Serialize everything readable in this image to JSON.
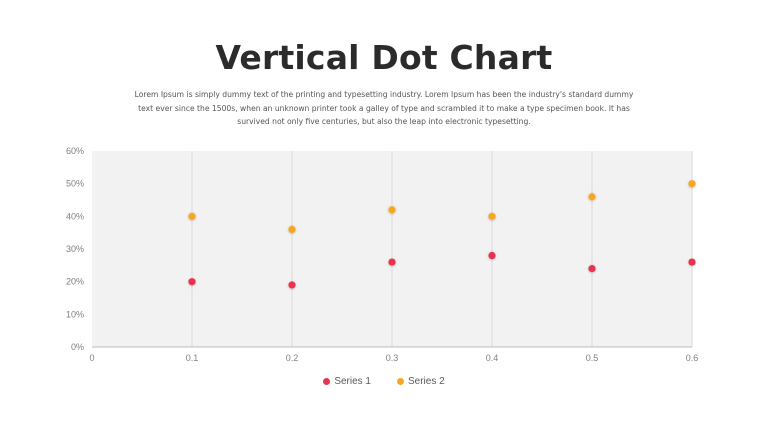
{
  "slide": {
    "title": "Vertical Dot Chart",
    "description": "Lorem Ipsum is simply dummy text of the printing and typesetting industry. Lorem Ipsum has been the industry's standard dummy text ever since the 1500s, when an unknown printer took a galley of type and scrambled it to make a type specimen book. It has survived not only five centuries, but also the leap into electronic typesetting."
  },
  "colors": {
    "plot_background": "#f2f2f2",
    "gridline": "#d9d9d9",
    "series_1": "#e8334f",
    "series_2": "#f5a623"
  },
  "chart_data": {
    "type": "scatter",
    "title": "",
    "xlabel": "",
    "ylabel": "",
    "xlim": [
      0,
      0.6
    ],
    "ylim": [
      0,
      0.6
    ],
    "x_ticks": [
      "0",
      "0.1",
      "0.2",
      "0.3",
      "0.4",
      "0.5",
      "0.6"
    ],
    "y_ticks": [
      "0%",
      "10%",
      "20%",
      "30%",
      "40%",
      "50%",
      "60%"
    ],
    "grid": "vertical",
    "legend_position": "bottom",
    "x": [
      0.1,
      0.2,
      0.3,
      0.4,
      0.5,
      0.6
    ],
    "series": [
      {
        "name": "Series 1",
        "values": [
          0.2,
          0.19,
          0.26,
          0.28,
          0.24,
          0.26
        ]
      },
      {
        "name": "Series 2",
        "values": [
          0.4,
          0.36,
          0.42,
          0.4,
          0.46,
          0.5
        ]
      }
    ]
  }
}
